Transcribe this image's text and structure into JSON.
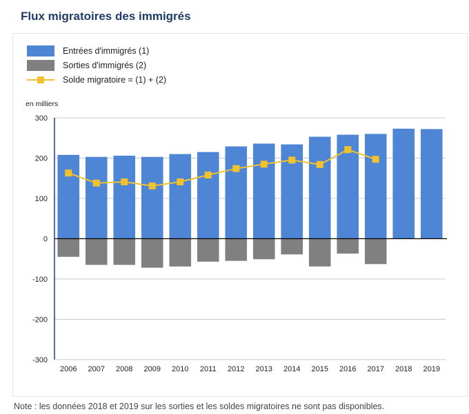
{
  "title": "Flux migratoires des immigrés",
  "unit_label": "en milliers",
  "note": "Note : les données 2018 et 2019 sur les sorties et les soldes migratoires ne sont pas disponibles.",
  "legend": [
    {
      "label": "Entrées d'immigrés (1)",
      "color": "#4e86d5",
      "kind": "bar"
    },
    {
      "label": "Sorties d'immigrés (2)",
      "color": "#808080",
      "kind": "bar"
    },
    {
      "label": "Solde migratoire = (1) + (2)",
      "color": "#f2c12e",
      "kind": "line"
    }
  ],
  "chart_data": {
    "type": "bar",
    "categories": [
      "2006",
      "2007",
      "2008",
      "2009",
      "2010",
      "2011",
      "2012",
      "2013",
      "2014",
      "2015",
      "2016",
      "2017",
      "2018",
      "2019"
    ],
    "series": [
      {
        "name": "Entrées d'immigrés (1)",
        "type": "bar",
        "color": "#4e86d5",
        "values": [
          208,
          203,
          206,
          203,
          210,
          215,
          229,
          236,
          234,
          253,
          258,
          260,
          273,
          272
        ]
      },
      {
        "name": "Sorties d'immigrés (2)",
        "type": "bar",
        "color": "#808080",
        "values": [
          -45,
          -65,
          -65,
          -72,
          -69,
          -57,
          -55,
          -51,
          -39,
          -69,
          -37,
          -63,
          null,
          null
        ]
      },
      {
        "name": "Solde migratoire = (1) + (2)",
        "type": "line",
        "color": "#f2c12e",
        "values": [
          163,
          138,
          141,
          131,
          141,
          158,
          174,
          185,
          195,
          184,
          221,
          197,
          null,
          null
        ]
      }
    ],
    "yticks": [
      300,
      200,
      100,
      0,
      -100,
      -200,
      -300
    ],
    "ylim": [
      -300,
      300
    ],
    "ylabel": "en milliers",
    "xlabel": "",
    "grid": true,
    "legend_position": "top-left"
  }
}
